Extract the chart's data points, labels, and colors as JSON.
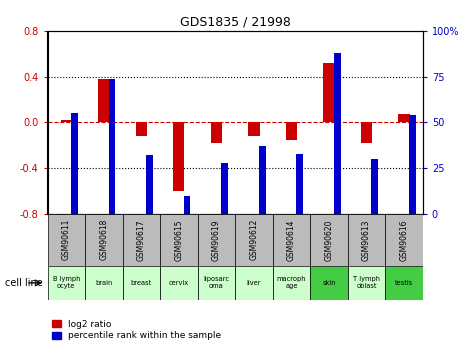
{
  "title": "GDS1835 / 21998",
  "samples": [
    "GSM90611",
    "GSM90618",
    "GSM90617",
    "GSM90615",
    "GSM90619",
    "GSM90612",
    "GSM90614",
    "GSM90620",
    "GSM90613",
    "GSM90616"
  ],
  "cell_lines": [
    "B lymph\nocyte",
    "brain",
    "breast",
    "cervix",
    "liposarc\noma",
    "liver",
    "macroph\nage",
    "skin",
    "T lymph\noblast",
    "testis"
  ],
  "cell_colors": [
    "#ccffcc",
    "#ccffcc",
    "#ccffcc",
    "#ccffcc",
    "#ccffcc",
    "#ccffcc",
    "#ccffcc",
    "#44cc44",
    "#ccffcc",
    "#44cc44"
  ],
  "log2_ratio": [
    0.02,
    0.38,
    -0.12,
    -0.6,
    -0.18,
    -0.12,
    -0.15,
    0.52,
    -0.18,
    0.07
  ],
  "percentile_rank": [
    55,
    74,
    32,
    10,
    28,
    37,
    33,
    88,
    30,
    54
  ],
  "ylim_left": [
    -0.8,
    0.8
  ],
  "ylim_right": [
    0,
    100
  ],
  "yticks_left": [
    -0.8,
    -0.4,
    0.0,
    0.4,
    0.8
  ],
  "yticks_right": [
    0,
    25,
    50,
    75,
    100
  ],
  "ytick_labels_right": [
    "0",
    "25",
    "50",
    "75",
    "100%"
  ],
  "red_color": "#cc0000",
  "blue_color": "#0000cc",
  "bg_color": "#ffffff",
  "sample_bg": "#bbbbbb",
  "zero_line_color": "#cc0000",
  "legend_red": "log2 ratio",
  "legend_blue": "percentile rank within the sample",
  "cell_line_label": "cell line"
}
